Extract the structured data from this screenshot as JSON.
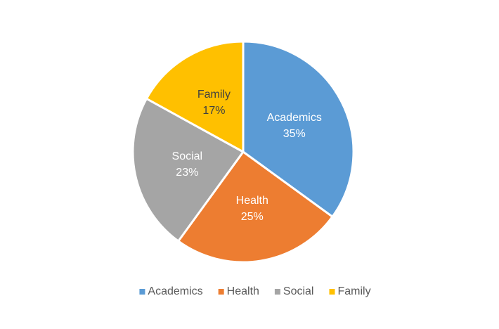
{
  "chart_data": {
    "type": "pie",
    "categories": [
      "Academics",
      "Health",
      "Social",
      "Family"
    ],
    "values": [
      35,
      25,
      23,
      17
    ],
    "value_labels": [
      "35%",
      "25%",
      "23%",
      "17%"
    ],
    "colors": [
      "#5b9bd5",
      "#ed7d31",
      "#a5a5a5",
      "#ffc000"
    ],
    "legend": "bottom"
  }
}
